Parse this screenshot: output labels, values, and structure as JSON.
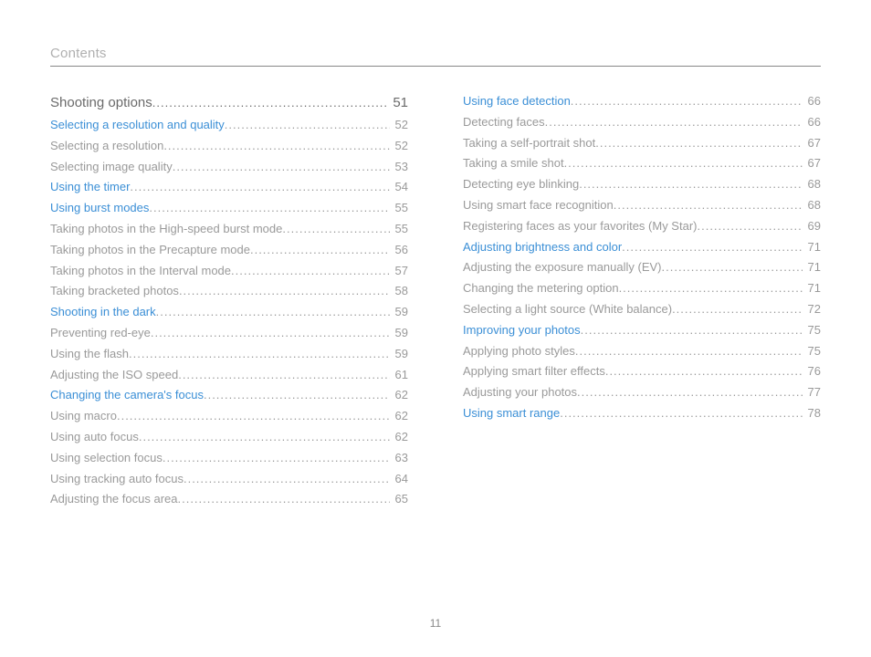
{
  "header": "Contents",
  "page_number": "11",
  "colors": {
    "link": "#3b8fd6",
    "regular": "#9a9a9a",
    "section": "#6a6a6a",
    "header": "#b0b0b0",
    "border": "#888888",
    "background": "#ffffff"
  },
  "left_column": [
    {
      "label": "Shooting options",
      "page": "51",
      "type": "section"
    },
    {
      "label": "Selecting a resolution and quality",
      "page": "52",
      "type": "link"
    },
    {
      "label": "Selecting a resolution",
      "page": "52",
      "type": "regular"
    },
    {
      "label": "Selecting image quality",
      "page": "53",
      "type": "regular"
    },
    {
      "label": "Using the timer",
      "page": "54",
      "type": "link"
    },
    {
      "label": "Using burst modes",
      "page": "55",
      "type": "link"
    },
    {
      "label": "Taking photos in the High-speed burst mode",
      "page": "55",
      "type": "regular"
    },
    {
      "label": "Taking photos in the Precapture mode",
      "page": "56",
      "type": "regular"
    },
    {
      "label": "Taking photos in the Interval mode",
      "page": "57",
      "type": "regular"
    },
    {
      "label": "Taking bracketed photos",
      "page": "58",
      "type": "regular"
    },
    {
      "label": "Shooting in the dark",
      "page": "59",
      "type": "link"
    },
    {
      "label": "Preventing red-eye",
      "page": "59",
      "type": "regular"
    },
    {
      "label": "Using the flash",
      "page": "59",
      "type": "regular"
    },
    {
      "label": "Adjusting the ISO speed",
      "page": "61",
      "type": "regular"
    },
    {
      "label": "Changing the camera's focus",
      "page": "62",
      "type": "link"
    },
    {
      "label": "Using macro",
      "page": "62",
      "type": "regular"
    },
    {
      "label": "Using auto focus",
      "page": "62",
      "type": "regular"
    },
    {
      "label": "Using selection focus",
      "page": "63",
      "type": "regular"
    },
    {
      "label": "Using tracking auto focus",
      "page": "64",
      "type": "regular"
    },
    {
      "label": "Adjusting the focus area",
      "page": "65",
      "type": "regular"
    }
  ],
  "right_column": [
    {
      "label": "Using face detection",
      "page": "66",
      "type": "link"
    },
    {
      "label": "Detecting faces",
      "page": "66",
      "type": "regular"
    },
    {
      "label": "Taking a self-portrait shot",
      "page": "67",
      "type": "regular"
    },
    {
      "label": "Taking a smile shot",
      "page": "67",
      "type": "regular"
    },
    {
      "label": "Detecting eye blinking",
      "page": "68",
      "type": "regular"
    },
    {
      "label": "Using smart face recognition",
      "page": "68",
      "type": "regular"
    },
    {
      "label": "Registering faces as your favorites (My Star)",
      "page": "69",
      "type": "regular"
    },
    {
      "label": "Adjusting brightness and color",
      "page": "71",
      "type": "link"
    },
    {
      "label": "Adjusting the exposure manually (EV)",
      "page": "71",
      "type": "regular"
    },
    {
      "label": "Changing the metering option",
      "page": "71",
      "type": "regular"
    },
    {
      "label": "Selecting a light source (White balance)",
      "page": "72",
      "type": "regular"
    },
    {
      "label": "Improving your photos",
      "page": "75",
      "type": "link"
    },
    {
      "label": "Applying photo styles",
      "page": "75",
      "type": "regular"
    },
    {
      "label": "Applying smart filter effects",
      "page": "76",
      "type": "regular"
    },
    {
      "label": "Adjusting your photos",
      "page": "77",
      "type": "regular"
    },
    {
      "label": "Using smart range",
      "page": "78",
      "type": "link"
    }
  ]
}
